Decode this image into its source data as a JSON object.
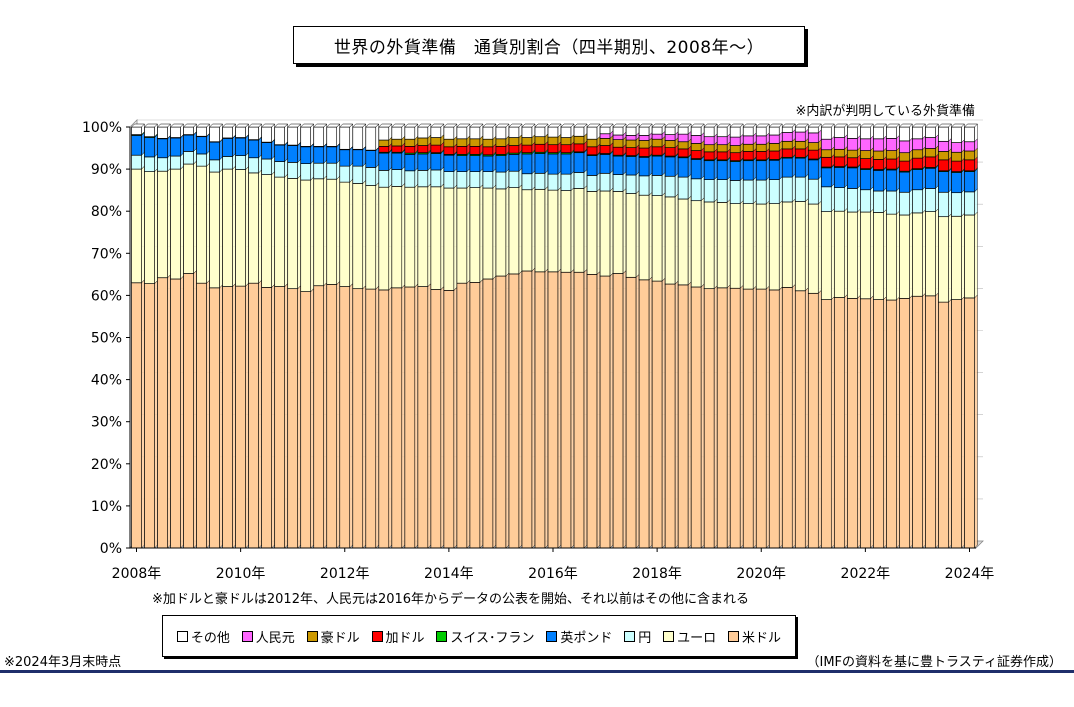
{
  "title": "世界の外貨準備　通貨別割合（四半期別、2008年～）",
  "notes": {
    "top": "※内訳が判明している外貨準備",
    "mid": "※加ドルと豪ドルは2012年、人民元は2016年からデータの公表を開始、それ以前はその他に含まれる",
    "date": "※2024年3月末時点",
    "source": "（IMFの資料を基に豊トラスティ証券作成）"
  },
  "chart_data": {
    "type": "bar",
    "stacked": true,
    "orientation": "vertical",
    "ylim": [
      0,
      100
    ],
    "y_ticks": [
      "0%",
      "10%",
      "20%",
      "30%",
      "40%",
      "50%",
      "60%",
      "70%",
      "80%",
      "90%",
      "100%"
    ],
    "x_ticks": [
      "2008年",
      "2010年",
      "2012年",
      "2014年",
      "2016年",
      "2018年",
      "2020年",
      "2022年",
      "2024年"
    ],
    "frequency": "quarterly",
    "start": "2008 Q1",
    "end": "2024 Q1",
    "legend_placement": "bottom",
    "colors": {
      "usd": "#ffcc99",
      "eur": "#ffffcc",
      "jpy": "#ccffff",
      "gbp": "#0080ff",
      "chf": "#00cc00",
      "cad": "#ff0000",
      "aud": "#cc9900",
      "cny": "#ff66ff",
      "other": "#ffffff"
    },
    "legend": [
      {
        "key": "other",
        "label": "その他"
      },
      {
        "key": "cny",
        "label": "人民元"
      },
      {
        "key": "aud",
        "label": "豪ドル"
      },
      {
        "key": "cad",
        "label": "加ドル"
      },
      {
        "key": "chf",
        "label": "スイス･フラン"
      },
      {
        "key": "gbp",
        "label": "英ポンド"
      },
      {
        "key": "jpy",
        "label": "円"
      },
      {
        "key": "eur",
        "label": "ユーロ"
      },
      {
        "key": "usd",
        "label": "米ドル"
      }
    ],
    "series": [
      {
        "key": "usd",
        "values": [
          63.0,
          62.8,
          64.2,
          63.9,
          65.2,
          62.9,
          61.8,
          62.1,
          62.2,
          62.9,
          61.9,
          62.1,
          61.6,
          60.9,
          62.3,
          62.6,
          62.1,
          61.6,
          61.5,
          61.3,
          61.8,
          62.0,
          62.1,
          61.4,
          61.2,
          62.9,
          63.1,
          63.9,
          64.6,
          65.1,
          65.8,
          65.6,
          65.6,
          65.5,
          65.5,
          65.0,
          64.6,
          65.2,
          64.3,
          63.7,
          63.4,
          62.7,
          62.5,
          62.0,
          61.6,
          61.8,
          61.7,
          61.5,
          61.5,
          61.3,
          61.9,
          61.1,
          60.5,
          59.0,
          59.5,
          59.3,
          59.2,
          59.0,
          58.9,
          59.3,
          59.8,
          59.9,
          58.4,
          59.0,
          59.4
        ]
      },
      {
        "key": "eur",
        "values": [
          27.0,
          26.6,
          25.3,
          26.1,
          26.0,
          27.8,
          27.5,
          27.9,
          27.7,
          26.2,
          26.8,
          26.0,
          26.2,
          26.5,
          25.4,
          25.0,
          24.8,
          25.0,
          24.6,
          24.4,
          24.1,
          23.7,
          23.7,
          24.4,
          24.3,
          22.6,
          22.5,
          21.6,
          20.7,
          20.5,
          19.3,
          19.6,
          19.4,
          19.4,
          19.9,
          19.7,
          20.2,
          19.5,
          19.9,
          20.1,
          20.3,
          20.7,
          20.4,
          20.5,
          20.6,
          20.3,
          20.1,
          20.3,
          20.2,
          20.5,
          20.3,
          21.2,
          21.2,
          20.9,
          20.5,
          20.5,
          20.6,
          20.7,
          20.4,
          19.8,
          19.8,
          20.0,
          20.3,
          19.8,
          19.7
        ]
      },
      {
        "key": "jpy",
        "values": [
          3.3,
          3.5,
          3.2,
          3.1,
          3.0,
          2.9,
          2.9,
          3.0,
          3.3,
          3.6,
          3.7,
          3.7,
          3.8,
          3.9,
          3.7,
          3.8,
          3.8,
          4.1,
          4.3,
          4.0,
          4.0,
          3.9,
          3.9,
          4.0,
          3.9,
          3.9,
          3.8,
          3.9,
          4.0,
          3.9,
          3.8,
          3.8,
          3.8,
          3.9,
          3.8,
          3.8,
          4.2,
          4.0,
          4.4,
          4.6,
          4.8,
          4.9,
          5.2,
          5.2,
          5.3,
          5.4,
          5.5,
          5.6,
          5.7,
          5.7,
          5.9,
          5.8,
          5.9,
          5.9,
          5.6,
          5.6,
          5.3,
          5.1,
          5.5,
          5.4,
          5.5,
          5.5,
          5.8,
          5.6,
          5.5
        ]
      },
      {
        "key": "gbp",
        "values": [
          4.7,
          4.6,
          4.5,
          4.3,
          3.9,
          4.1,
          4.2,
          4.3,
          4.2,
          4.2,
          3.9,
          3.9,
          4.0,
          4.0,
          3.9,
          3.9,
          3.9,
          3.9,
          4.0,
          4.1,
          3.9,
          3.9,
          3.9,
          3.9,
          3.9,
          3.8,
          3.8,
          3.7,
          3.9,
          4.0,
          4.7,
          4.7,
          4.8,
          4.8,
          4.7,
          4.7,
          4.5,
          4.4,
          4.4,
          4.4,
          4.6,
          4.6,
          4.6,
          4.6,
          4.5,
          4.5,
          4.5,
          4.6,
          4.6,
          4.6,
          4.5,
          4.5,
          4.6,
          4.5,
          4.8,
          4.9,
          4.8,
          4.9,
          5.0,
          4.8,
          4.8,
          4.8,
          4.9,
          4.8,
          4.8
        ]
      },
      {
        "key": "chf",
        "values": [
          0.2,
          0.2,
          0.1,
          0.1,
          0.1,
          0.1,
          0.1,
          0.1,
          0.1,
          0.1,
          0.1,
          0.1,
          0.1,
          0.1,
          0.1,
          0.1,
          0.1,
          0.1,
          0.1,
          0.2,
          0.2,
          0.3,
          0.3,
          0.2,
          0.2,
          0.3,
          0.3,
          0.3,
          0.3,
          0.3,
          0.3,
          0.3,
          0.3,
          0.3,
          0.2,
          0.2,
          0.2,
          0.2,
          0.2,
          0.2,
          0.2,
          0.2,
          0.2,
          0.2,
          0.2,
          0.2,
          0.2,
          0.2,
          0.2,
          0.2,
          0.2,
          0.2,
          0.2,
          0.2,
          0.2,
          0.2,
          0.2,
          0.2,
          0.2,
          0.2,
          0.2,
          0.2,
          0.2,
          0.2,
          0.2
        ]
      },
      {
        "key": "cad",
        "values": [
          0,
          0,
          0,
          0,
          0,
          0,
          0,
          0,
          0,
          0,
          0,
          0,
          0,
          0,
          0,
          0,
          0,
          0,
          0,
          1.4,
          1.5,
          1.6,
          1.7,
          1.8,
          1.8,
          1.9,
          1.9,
          1.9,
          1.9,
          1.8,
          1.8,
          1.9,
          1.9,
          1.9,
          1.9,
          1.9,
          1.9,
          1.9,
          1.9,
          2.0,
          2.0,
          2.0,
          1.9,
          1.9,
          1.9,
          1.9,
          1.9,
          2.0,
          2.0,
          2.0,
          2.0,
          2.0,
          2.1,
          2.3,
          2.3,
          2.2,
          2.4,
          2.4,
          2.4,
          2.4,
          2.5,
          2.5,
          2.6,
          2.5,
          2.6
        ]
      },
      {
        "key": "aud",
        "values": [
          0,
          0,
          0,
          0,
          0,
          0,
          0,
          0,
          0,
          0,
          0,
          0,
          0,
          0,
          0,
          0,
          0,
          0,
          0,
          1.5,
          1.6,
          1.7,
          1.8,
          1.8,
          1.8,
          1.8,
          1.8,
          1.8,
          1.8,
          1.9,
          1.8,
          1.8,
          1.8,
          1.7,
          1.8,
          1.8,
          1.7,
          1.8,
          1.8,
          1.8,
          1.8,
          1.7,
          1.7,
          1.7,
          1.7,
          1.7,
          1.7,
          1.7,
          1.7,
          1.8,
          1.8,
          1.8,
          1.8,
          1.8,
          1.8,
          1.8,
          1.9,
          2.0,
          2.0,
          2.0,
          2.0,
          2.0,
          2.0,
          2.1,
          2.1
        ]
      },
      {
        "key": "cny",
        "values": [
          0,
          0,
          0,
          0,
          0,
          0,
          0,
          0,
          0,
          0,
          0,
          0,
          0,
          0,
          0,
          0,
          0,
          0,
          0,
          0,
          0,
          0,
          0,
          0,
          0,
          0,
          0,
          0,
          0,
          0,
          0,
          0,
          0,
          0,
          0,
          0,
          1.1,
          1.1,
          1.1,
          1.2,
          1.2,
          1.4,
          1.8,
          1.9,
          1.9,
          1.9,
          2.0,
          2.0,
          2.0,
          2.0,
          2.1,
          2.2,
          2.3,
          2.5,
          2.8,
          2.8,
          2.8,
          2.9,
          2.9,
          2.8,
          2.6,
          2.6,
          2.4,
          2.3,
          2.2
        ]
      }
    ]
  }
}
